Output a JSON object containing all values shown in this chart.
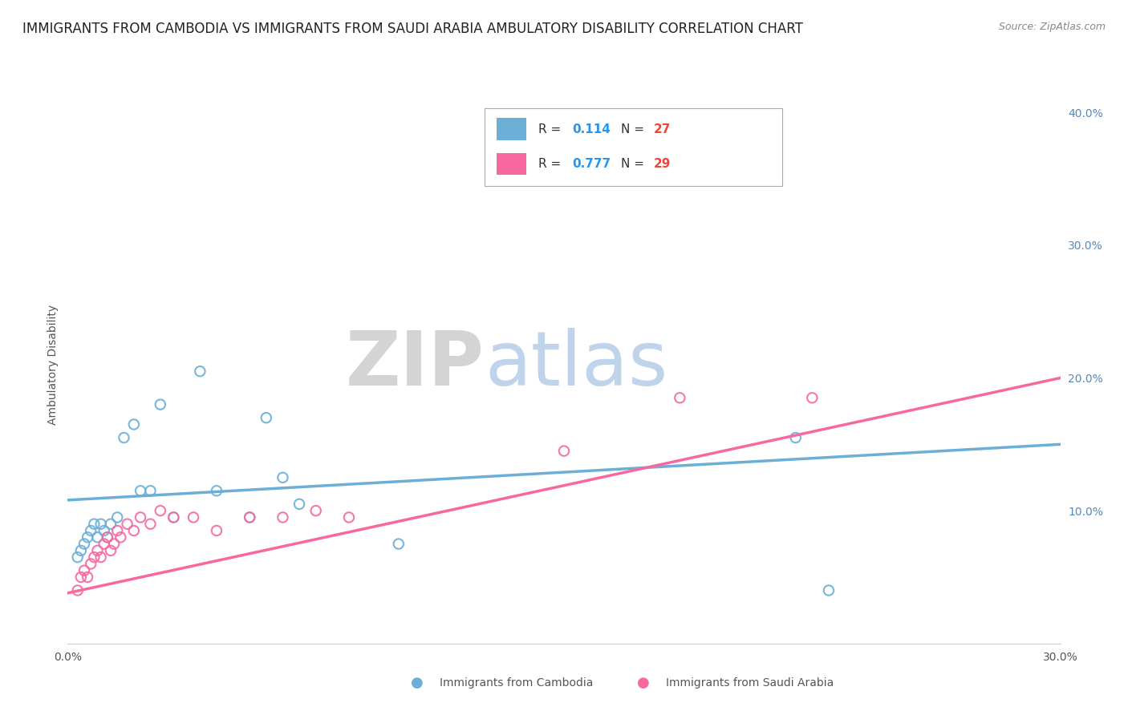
{
  "title": "IMMIGRANTS FROM CAMBODIA VS IMMIGRANTS FROM SAUDI ARABIA AMBULATORY DISABILITY CORRELATION CHART",
  "source": "Source: ZipAtlas.com",
  "ylabel": "Ambulatory Disability",
  "x_label_cambodia": "Immigrants from Cambodia",
  "x_label_saudi": "Immigrants from Saudi Arabia",
  "xlim": [
    0.0,
    0.3
  ],
  "ylim": [
    0.0,
    0.42
  ],
  "y_ticks_right": [
    0.0,
    0.1,
    0.2,
    0.3,
    0.4
  ],
  "y_tick_labels_right": [
    "",
    "10.0%",
    "20.0%",
    "30.0%",
    "40.0%"
  ],
  "cambodia_color": "#6baed6",
  "saudi_color": "#f768a1",
  "r_cambodia": 0.114,
  "n_cambodia": 27,
  "r_saudi": 0.777,
  "n_saudi": 29,
  "background_color": "#ffffff",
  "grid_color": "#dddddd",
  "cambodia_scatter": [
    [
      0.003,
      0.065
    ],
    [
      0.004,
      0.07
    ],
    [
      0.005,
      0.075
    ],
    [
      0.006,
      0.08
    ],
    [
      0.007,
      0.085
    ],
    [
      0.008,
      0.09
    ],
    [
      0.009,
      0.08
    ],
    [
      0.01,
      0.09
    ],
    [
      0.011,
      0.085
    ],
    [
      0.012,
      0.08
    ],
    [
      0.013,
      0.09
    ],
    [
      0.015,
      0.095
    ],
    [
      0.017,
      0.155
    ],
    [
      0.02,
      0.165
    ],
    [
      0.022,
      0.115
    ],
    [
      0.025,
      0.115
    ],
    [
      0.028,
      0.18
    ],
    [
      0.032,
      0.095
    ],
    [
      0.04,
      0.205
    ],
    [
      0.045,
      0.115
    ],
    [
      0.055,
      0.095
    ],
    [
      0.06,
      0.17
    ],
    [
      0.065,
      0.125
    ],
    [
      0.07,
      0.105
    ],
    [
      0.1,
      0.075
    ],
    [
      0.22,
      0.155
    ],
    [
      0.23,
      0.04
    ]
  ],
  "saudi_scatter": [
    [
      0.003,
      0.04
    ],
    [
      0.004,
      0.05
    ],
    [
      0.005,
      0.055
    ],
    [
      0.006,
      0.05
    ],
    [
      0.007,
      0.06
    ],
    [
      0.008,
      0.065
    ],
    [
      0.009,
      0.07
    ],
    [
      0.01,
      0.065
    ],
    [
      0.011,
      0.075
    ],
    [
      0.012,
      0.08
    ],
    [
      0.013,
      0.07
    ],
    [
      0.014,
      0.075
    ],
    [
      0.015,
      0.085
    ],
    [
      0.016,
      0.08
    ],
    [
      0.018,
      0.09
    ],
    [
      0.02,
      0.085
    ],
    [
      0.022,
      0.095
    ],
    [
      0.025,
      0.09
    ],
    [
      0.028,
      0.1
    ],
    [
      0.032,
      0.095
    ],
    [
      0.038,
      0.095
    ],
    [
      0.045,
      0.085
    ],
    [
      0.055,
      0.095
    ],
    [
      0.065,
      0.095
    ],
    [
      0.075,
      0.1
    ],
    [
      0.085,
      0.095
    ],
    [
      0.15,
      0.145
    ],
    [
      0.185,
      0.185
    ],
    [
      0.225,
      0.185
    ]
  ],
  "cambodia_trendline": [
    [
      0.0,
      0.108
    ],
    [
      0.3,
      0.15
    ]
  ],
  "saudi_trendline": [
    [
      0.0,
      0.038
    ],
    [
      0.3,
      0.2
    ]
  ],
  "legend_r_color": "#2196F3",
  "legend_n_color": "#F44336",
  "title_fontsize": 12,
  "axis_fontsize": 10,
  "tick_fontsize": 10
}
